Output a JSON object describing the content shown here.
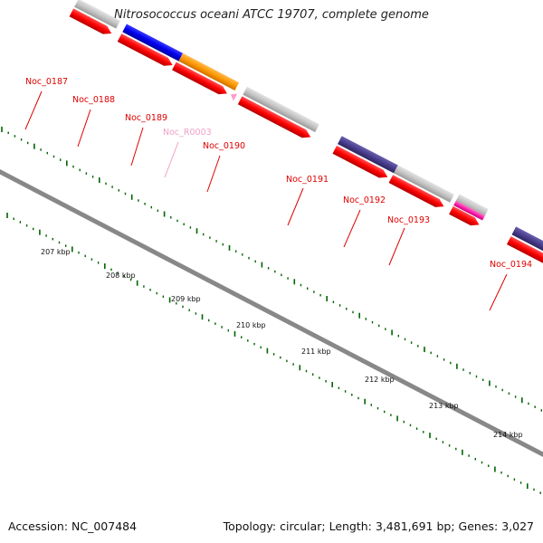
{
  "title": "Nitrosococcus oceani ATCC 19707, complete genome",
  "footer": {
    "accession": "Accession: NC_007484",
    "summary": "Topology: circular; Length: 3,481,691 bp; Genes: 3,027"
  },
  "colors": {
    "label_red": "#e00000",
    "label_pink": "#f0a0c8",
    "cds_red": "#ff0000",
    "gene_gray": "#c0c0c0",
    "blue": "#0000ee",
    "orange": "#ff9900",
    "purple": "#483d8b",
    "magenta": "#ff33aa",
    "backbone": "#888888",
    "tick_green": "#006400"
  },
  "gene_labels": [
    {
      "id": "Noc_0187",
      "color": "#e00000"
    },
    {
      "id": "Noc_0188",
      "color": "#e00000"
    },
    {
      "id": "Noc_0189",
      "color": "#e00000"
    },
    {
      "id": "Noc_R0003",
      "color": "#f0a0c8"
    },
    {
      "id": "Noc_0190",
      "color": "#e00000"
    },
    {
      "id": "Noc_0191",
      "color": "#e00000"
    },
    {
      "id": "Noc_0192",
      "color": "#e00000"
    },
    {
      "id": "Noc_0193",
      "color": "#e00000"
    },
    {
      "id": "Noc_0194",
      "color": "#e00000"
    }
  ],
  "kbp_labels": [
    "207 kbp",
    "208 kbp",
    "209 kbp",
    "210 kbp",
    "211 kbp",
    "212 kbp",
    "213 kbp",
    "214 kbp"
  ]
}
